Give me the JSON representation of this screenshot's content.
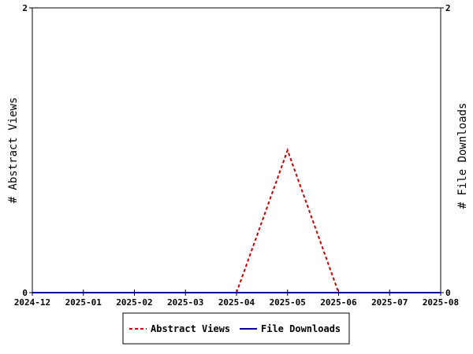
{
  "chart_data": {
    "type": "line",
    "categories": [
      "2024-12",
      "2025-01",
      "2025-02",
      "2025-03",
      "2025-04",
      "2025-05",
      "2025-06",
      "2025-07",
      "2025-08"
    ],
    "series": [
      {
        "name": "Abstract Views",
        "values": [
          0,
          0,
          0,
          0,
          0,
          1,
          0,
          0,
          0
        ],
        "color": "#cc0000",
        "style": "dashed",
        "axis": "left"
      },
      {
        "name": "File Downloads",
        "values": [
          0,
          0,
          0,
          0,
          0,
          0,
          0,
          0,
          0
        ],
        "color": "#000099",
        "style": "solid",
        "axis": "right"
      }
    ],
    "ylabel": "# Abstract Views",
    "ylabel_right": "# File Downloads",
    "ylim": [
      0,
      2
    ],
    "ylim_right": [
      0,
      2
    ],
    "yticks": [
      "0",
      "2"
    ],
    "yticks_right": [
      "0",
      "2"
    ],
    "legend": "bottom-center",
    "grid": false
  }
}
